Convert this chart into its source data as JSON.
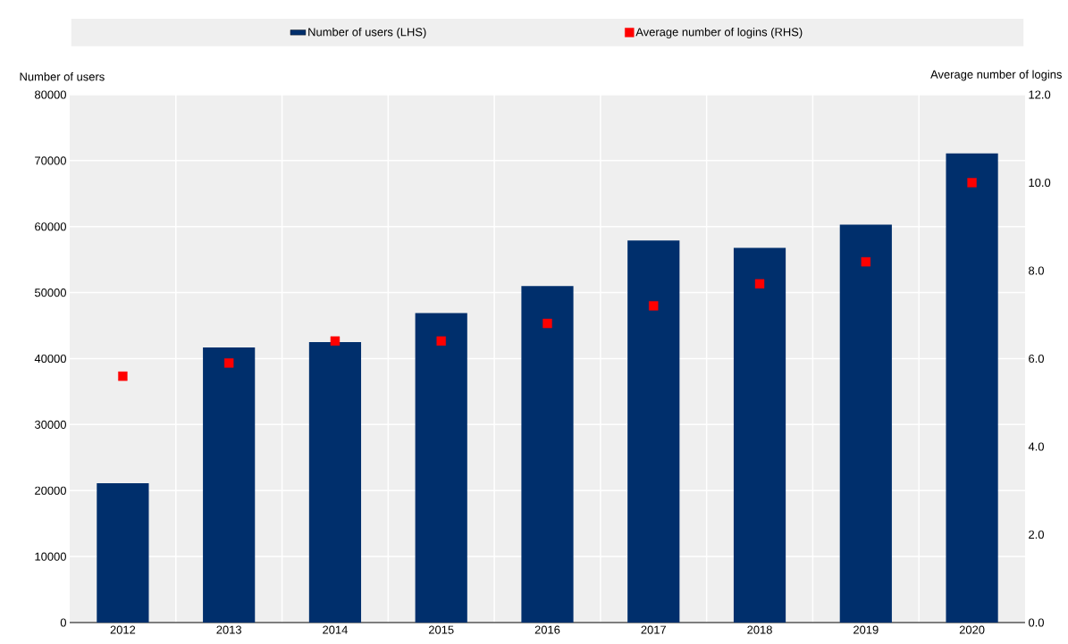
{
  "chart_data": {
    "type": "bar",
    "categories": [
      "2012",
      "2013",
      "2014",
      "2015",
      "2016",
      "2017",
      "2018",
      "2019",
      "2020"
    ],
    "series": [
      {
        "name": "Number of users (LHS)",
        "color": "#002f6c",
        "values": [
          21100,
          41700,
          42500,
          46900,
          51000,
          57900,
          56800,
          60300,
          71100
        ]
      },
      {
        "name": "Average number of logins (RHS)",
        "type": "scatter",
        "axis": "y2",
        "color": "#ff0000",
        "values": [
          5.6,
          5.9,
          6.4,
          6.4,
          6.8,
          7.2,
          7.7,
          8.2,
          10.0
        ]
      }
    ],
    "ylabel": "Number of users",
    "y2label": "Average number of logins",
    "ylim": [
      0,
      80000
    ],
    "yticks": [
      0,
      10000,
      20000,
      30000,
      40000,
      50000,
      60000,
      70000,
      80000
    ],
    "y2lim": [
      0,
      12
    ],
    "y2ticks": [
      {
        "value": 0,
        "label": "0.0"
      },
      {
        "value": 2,
        "label": "2.0"
      },
      {
        "value": 4,
        "label": "4.0"
      },
      {
        "value": 6,
        "label": "6.0"
      },
      {
        "value": 8,
        "label": "8.0"
      },
      {
        "value": 10,
        "label": "10.0"
      },
      {
        "value": 12,
        "label": "12.0"
      }
    ],
    "grid": true,
    "legend": "top",
    "marker": "square"
  }
}
